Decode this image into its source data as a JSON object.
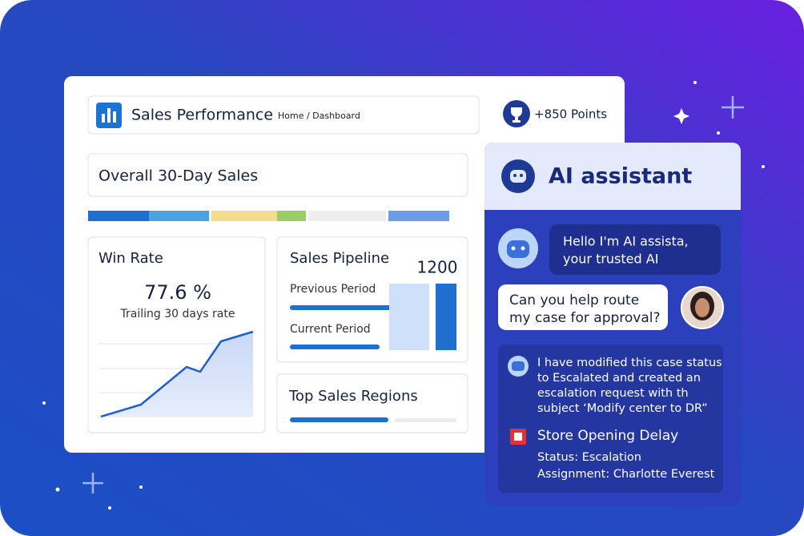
{
  "header": {
    "title": "Sales Performance",
    "breadcrumb": "Home / Dashboard",
    "points": "+850 Points"
  },
  "overall": {
    "title": "Overall 30-Day Sales"
  },
  "win_rate": {
    "title": "Win Rate",
    "value": "77.6 %",
    "subtitle": "Trailing 30 days rate"
  },
  "pipeline": {
    "title": "Sales Pipeline",
    "value": "1200",
    "labels": [
      "Previous Period",
      "Current Period"
    ]
  },
  "regions": {
    "title": "Top Sales Regions"
  },
  "assistant": {
    "title": "AI assistant",
    "messages": [
      {
        "lines": [
          "Hello I'm AI assista,",
          "your trusted AI"
        ]
      },
      {
        "lines": [
          "Can you help route",
          "my case for approval?"
        ]
      },
      {
        "lines": [
          "I have modified this case status",
          "to Escalated and created an",
          "escalation request with th",
          "subject ‘Modify center to DR”"
        ]
      }
    ],
    "case": {
      "title": "Store Opening Delay",
      "status": "Status: Escalation",
      "assignment": "Assignment: Charlotte Everest"
    }
  }
}
